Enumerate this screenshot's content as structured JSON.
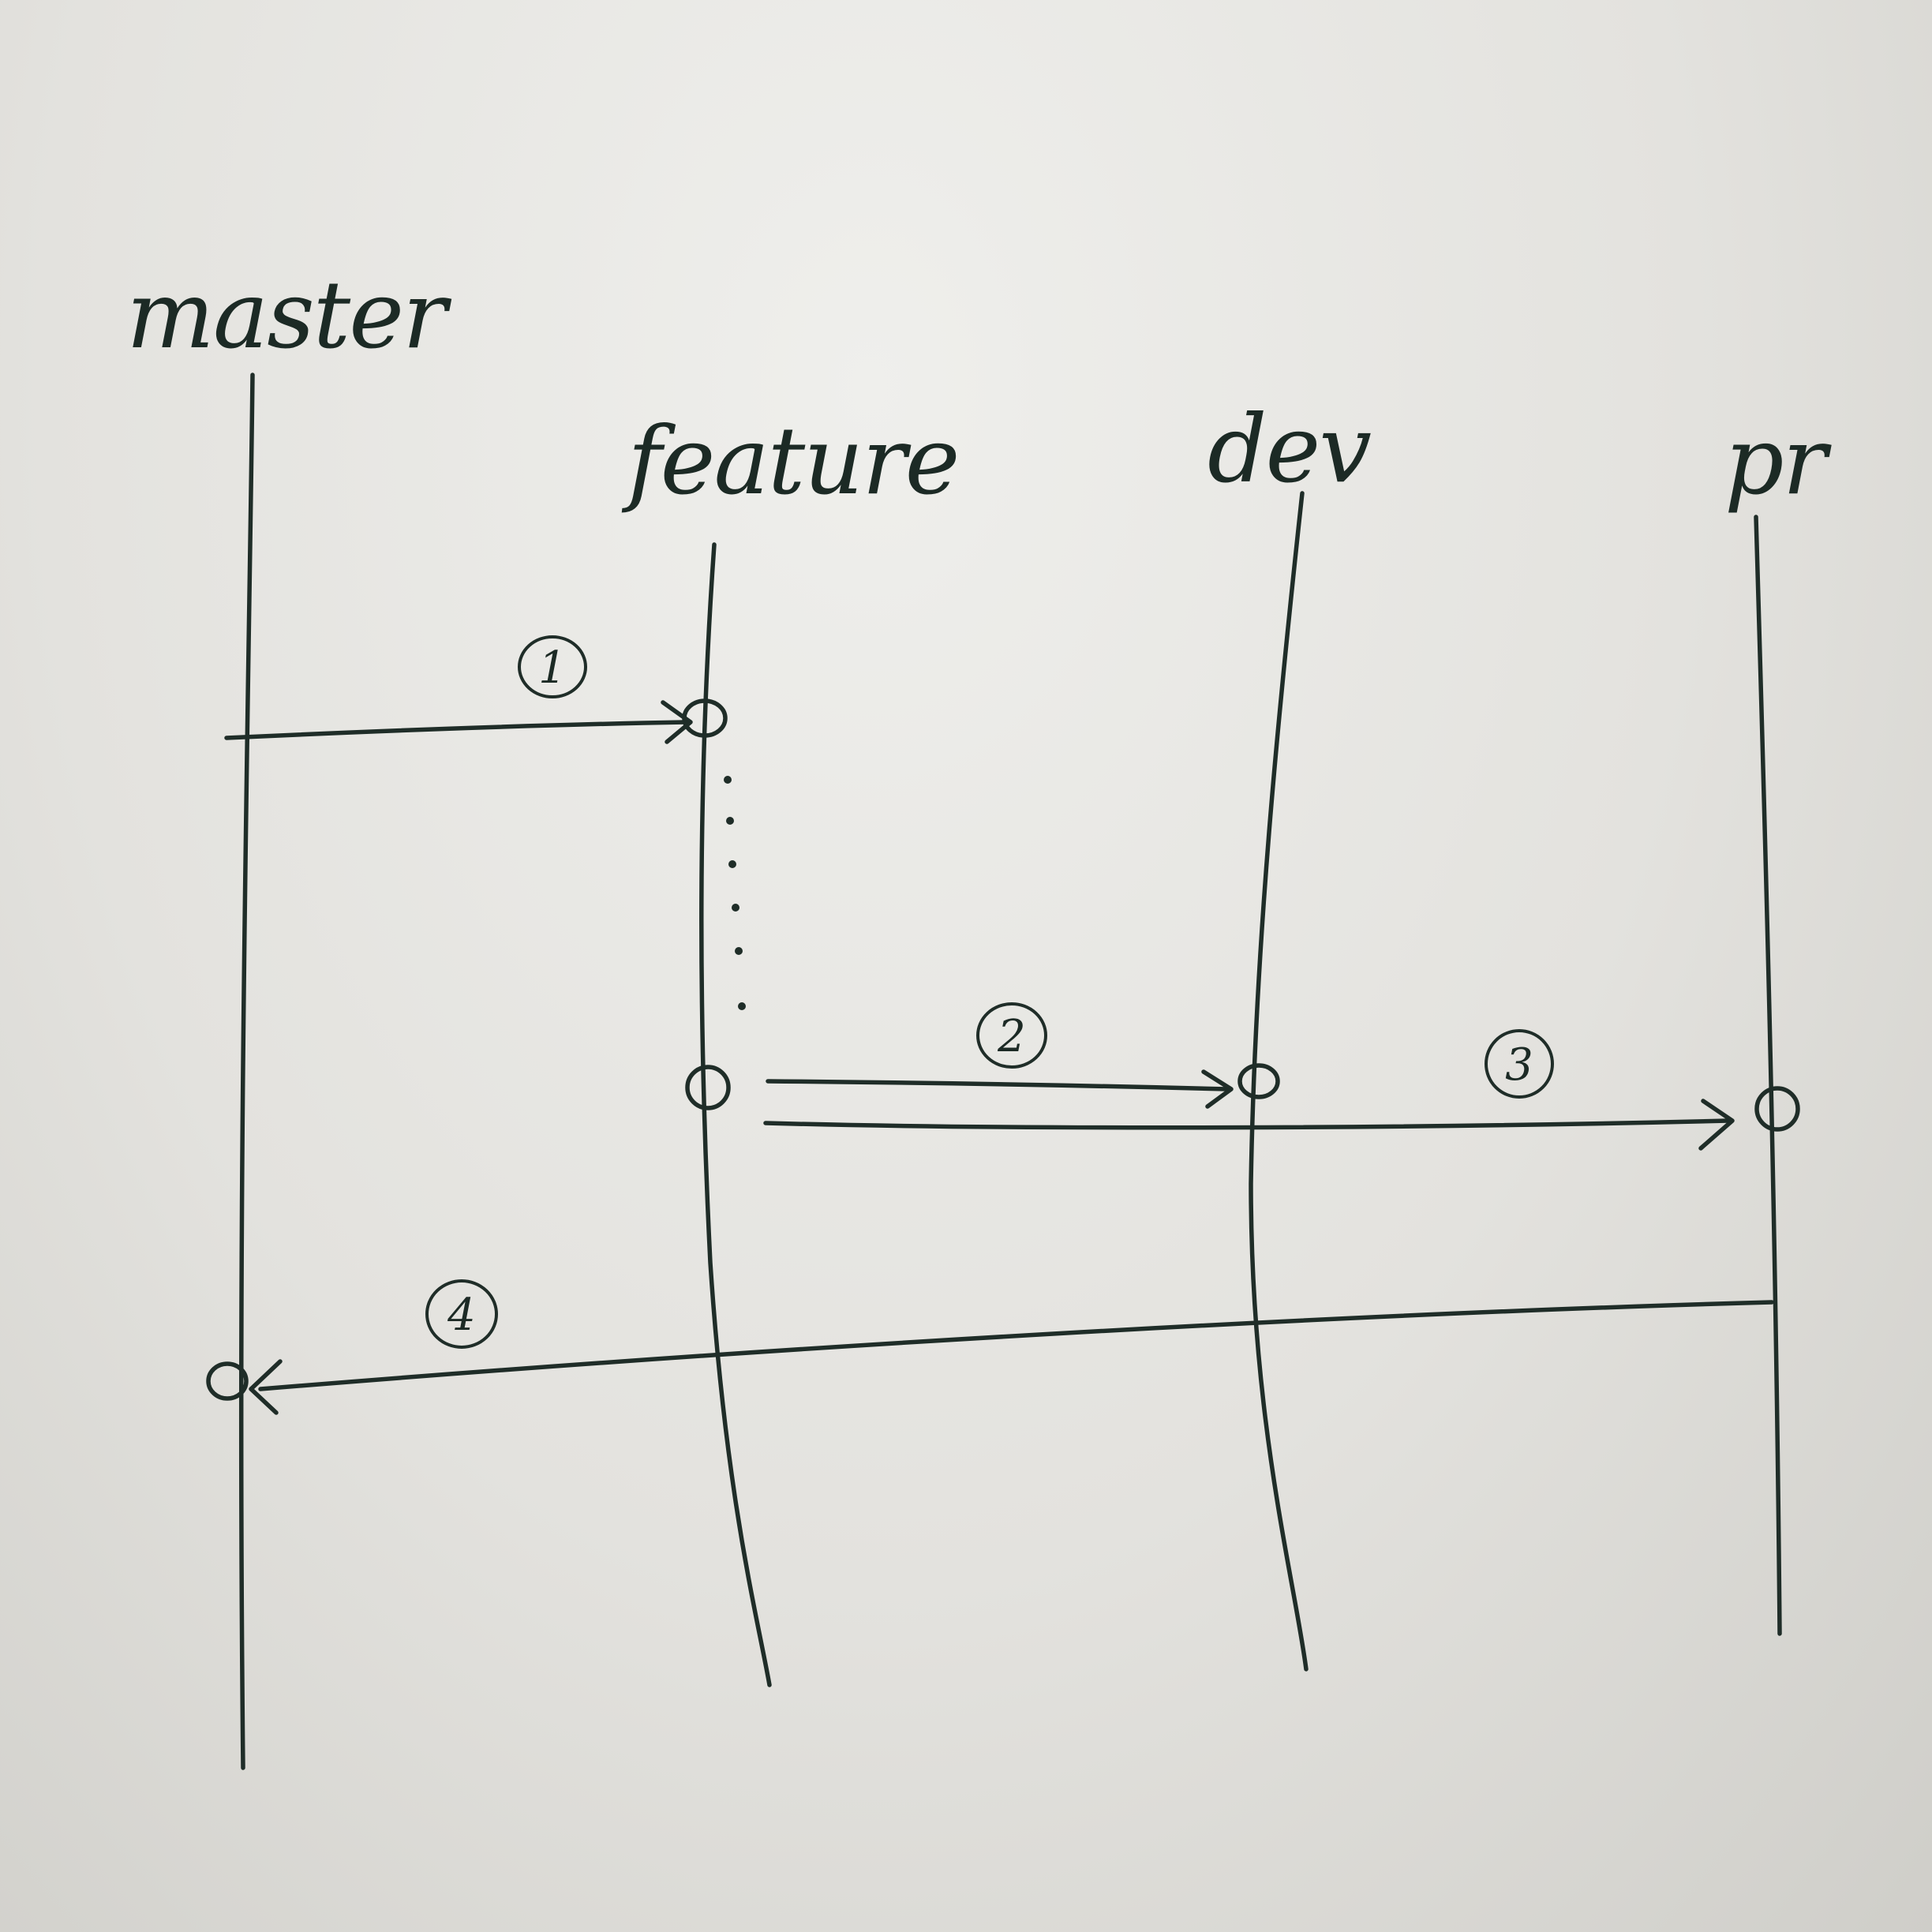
{
  "diagram": {
    "branches": [
      {
        "id": "master",
        "label": "master"
      },
      {
        "id": "feature",
        "label": "feature"
      },
      {
        "id": "dev",
        "label": "dev"
      },
      {
        "id": "pr",
        "label": "pr"
      }
    ],
    "steps": [
      {
        "label": "1",
        "from": "master",
        "to": "feature"
      },
      {
        "label": "2",
        "from": "feature",
        "to": "dev"
      },
      {
        "label": "3",
        "from": "feature",
        "to": "pr"
      },
      {
        "label": "4",
        "from": "pr",
        "to": "master"
      }
    ]
  },
  "colors": {
    "ink": "#1f2d28",
    "paper": "#e8e7e3"
  }
}
